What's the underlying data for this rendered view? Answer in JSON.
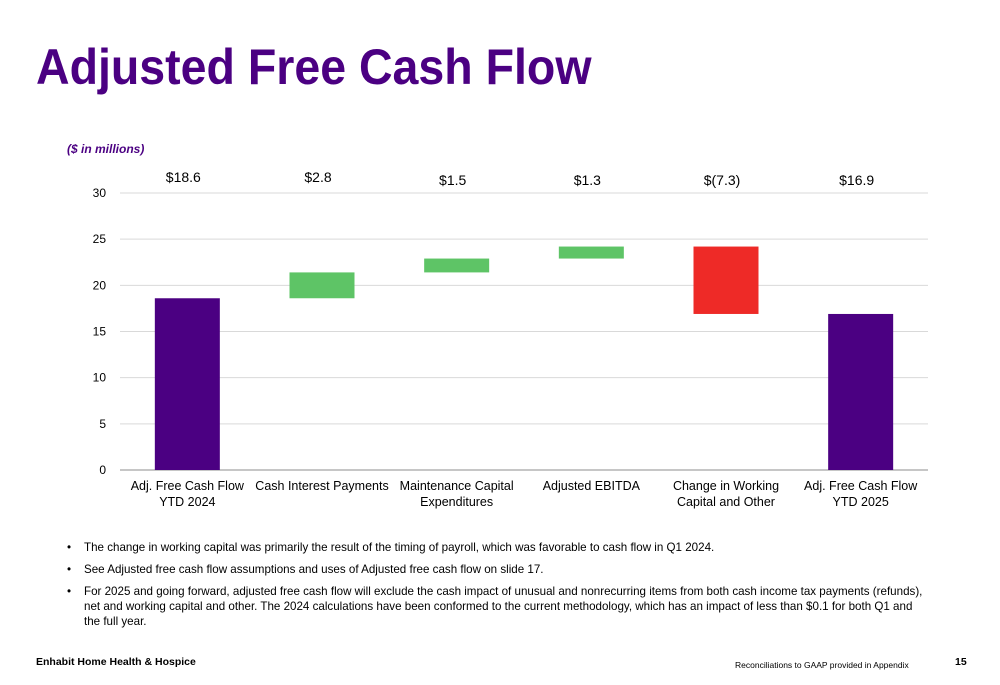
{
  "slide": {
    "title": "Adjusted Free Cash Flow",
    "units_note": "($ in millions)",
    "bullets": [
      "The change in working capital was primarily the result of the timing of payroll, which was favorable to cash flow in Q1 2024.",
      "See Adjusted free cash flow assumptions and uses of Adjusted free cash flow on slide 17.",
      "For 2025 and going forward, adjusted free cash flow will exclude the cash impact of unusual and nonrecurring items from both cash income tax payments (refunds), net and working capital and other.  The 2024 calculations have been conformed to the current methodology, which has an impact of less than $0.1 for both Q1 and the full year."
    ],
    "footer": {
      "company": "Enhabit Home Health & Hospice",
      "note": "Reconciliations to GAAP provided in Appendix",
      "page_number": "15"
    }
  },
  "colors": {
    "title": "#4b0082",
    "total_bar": "#4b0082",
    "increase_bar": "#5ec466",
    "decrease_bar": "#ee2a27",
    "grid": "#d9d9d9",
    "axis": "#8c8c8c"
  },
  "chart_data": {
    "type": "bar",
    "subtype": "waterfall",
    "title": "",
    "xlabel": "",
    "ylabel": "",
    "ylim": [
      0,
      30
    ],
    "yticks": [
      0,
      5,
      10,
      15,
      20,
      25,
      30
    ],
    "grid": true,
    "categories": [
      [
        "Adj. Free Cash Flow",
        "YTD 2024"
      ],
      [
        "Cash Interest Payments"
      ],
      [
        "Maintenance Capital",
        "Expenditures"
      ],
      [
        "Adjusted EBITDA"
      ],
      [
        "Change in Working",
        "Capital and Other"
      ],
      [
        "Adj. Free Cash Flow",
        "YTD 2025"
      ]
    ],
    "values": [
      18.6,
      2.8,
      1.5,
      1.3,
      -7.3,
      16.9
    ],
    "kinds": [
      "total",
      "increase",
      "increase",
      "increase",
      "decrease",
      "total"
    ],
    "value_labels": [
      "$18.6",
      "$2.8",
      "$1.5",
      "$1.3",
      "$(7.3)",
      "$16.9"
    ]
  }
}
